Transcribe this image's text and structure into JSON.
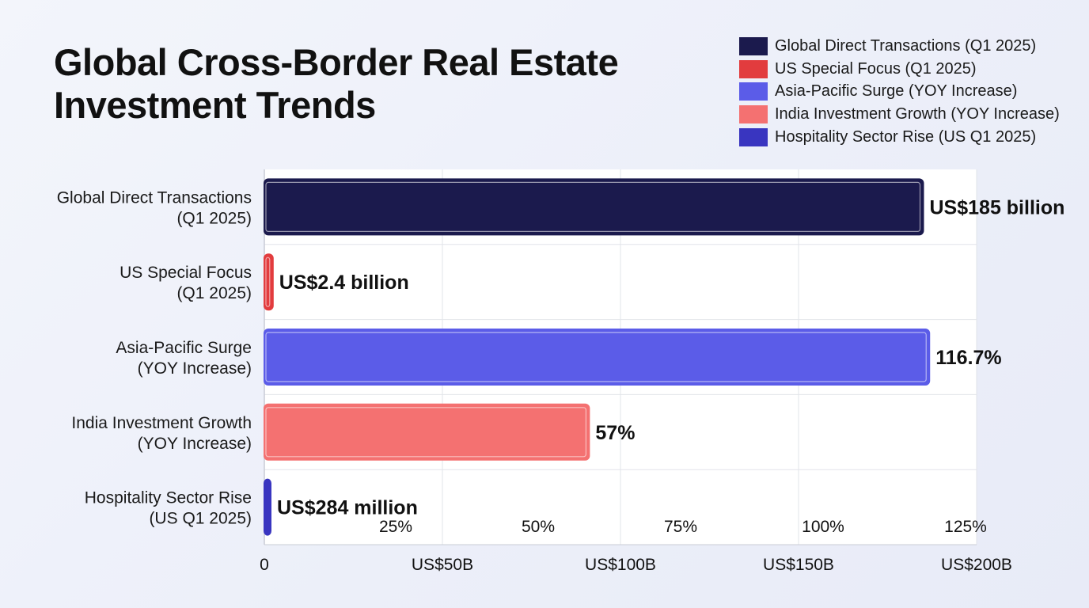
{
  "title_lines": [
    "Global Cross-Border Real Estate",
    "Investment Trends"
  ],
  "legend": [
    {
      "label": "Global Direct Transactions (Q1 2025)",
      "color": "#1b1a4d"
    },
    {
      "label": "US Special Focus (Q1 2025)",
      "color": "#e23c3e"
    },
    {
      "label": "Asia-Pacific Surge (YOY Increase)",
      "color": "#5b5ce8"
    },
    {
      "label": "India Investment Growth (YOY Increase)",
      "color": "#f47171"
    },
    {
      "label": "Hospitality Sector Rise (US Q1 2025)",
      "color": "#3935c0"
    }
  ],
  "chart_data": {
    "type": "bar",
    "orientation": "horizontal",
    "categories": [
      [
        "Global Direct Transactions",
        "(Q1 2025)"
      ],
      [
        "US Special Focus",
        "(Q1 2025)"
      ],
      [
        "Asia-Pacific Surge",
        "(YOY Increase)"
      ],
      [
        "India Investment Growth",
        "(YOY Increase)"
      ],
      [
        "Hospitality Sector Rise",
        "(US Q1 2025)"
      ]
    ],
    "series": [
      {
        "name": "Global Direct Transactions (Q1 2025)",
        "value": 185,
        "unit": "US$ billion",
        "axis": "dollar",
        "data_label": "US$185 billion",
        "color": "#1b1a4d"
      },
      {
        "name": "US Special Focus (Q1 2025)",
        "value": 2.4,
        "unit": "US$ billion",
        "axis": "dollar",
        "data_label": "US$2.4 billion",
        "color": "#e23c3e"
      },
      {
        "name": "Asia-Pacific Surge (YOY Increase)",
        "value": 116.7,
        "unit": "%",
        "axis": "percent",
        "data_label": "116.7%",
        "color": "#5b5ce8"
      },
      {
        "name": "India Investment Growth (YOY Increase)",
        "value": 57,
        "unit": "%",
        "axis": "percent",
        "data_label": "57%",
        "color": "#f47171"
      },
      {
        "name": "Hospitality Sector Rise (US Q1 2025)",
        "value": 0.284,
        "unit": "US$ billion",
        "axis": "dollar",
        "data_label": "US$284 million",
        "color": "#3935c0"
      }
    ],
    "dollar_axis": {
      "min": 0,
      "max": 200,
      "ticks": [
        0,
        50,
        100,
        150,
        200
      ],
      "tick_labels": [
        "0",
        "US$50B",
        "US$100B",
        "US$150B",
        "US$200B"
      ]
    },
    "percent_axis": {
      "min": 0,
      "max": 125,
      "ticks": [
        25,
        50,
        75,
        100,
        125
      ],
      "tick_labels": [
        "25%",
        "50%",
        "75%",
        "100%",
        "125%"
      ]
    },
    "grid": true,
    "legend_position": "top-right"
  }
}
